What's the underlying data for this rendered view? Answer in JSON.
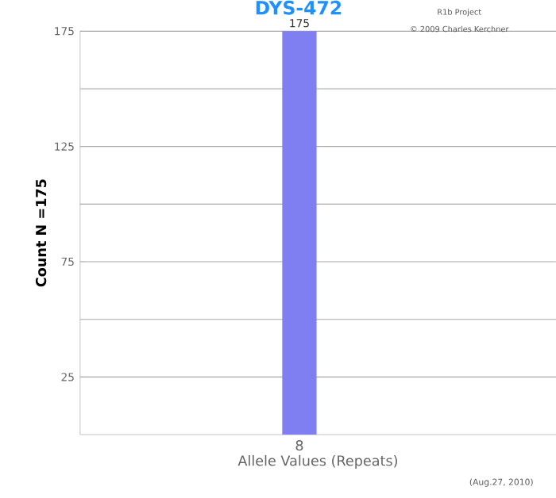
{
  "chart_data": {
    "type": "bar",
    "title": "DYS-472",
    "xlabel": "Allele Values (Repeats)",
    "ylabel": "Count N =175",
    "categories": [
      "8"
    ],
    "values": [
      175
    ],
    "color": "#7f7ff2",
    "ylim": [
      0,
      175
    ],
    "yticks": [
      25,
      75,
      125,
      175
    ],
    "grid": "y",
    "data_labels": true,
    "annotations": [
      "R1b Project",
      "© 2009 Charles Kerchner",
      "(Aug.27, 2010)"
    ]
  }
}
